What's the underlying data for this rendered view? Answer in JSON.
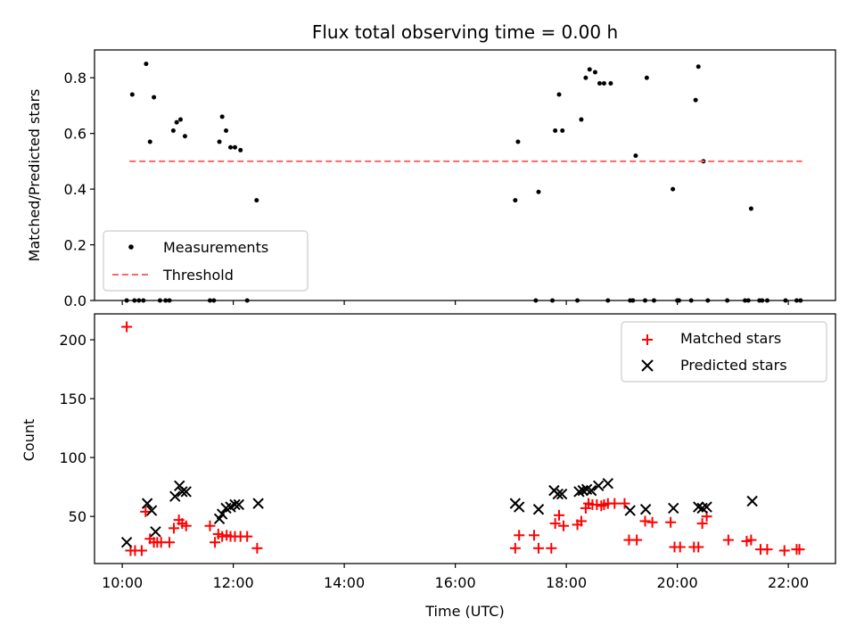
{
  "chart_data": [
    {
      "type": "scatter",
      "title": "Flux total observing time = 0.00 h",
      "xlabel": "",
      "ylabel": "Matched/Predicted stars",
      "xlim": [
        9.5,
        22.85
      ],
      "ylim": [
        0,
        0.9
      ],
      "yticks": [
        0.0,
        0.2,
        0.4,
        0.6,
        0.8
      ],
      "ytick_labels": [
        "0.0",
        "0.2",
        "0.4",
        "0.6",
        "0.8"
      ],
      "xticks": [
        10,
        12,
        14,
        16,
        18,
        20,
        22
      ],
      "xtick_labels": [
        "",
        "",
        "",
        "",
        "",
        "",
        ""
      ],
      "legend_position": "lower-left",
      "series": [
        {
          "name": "Measurements",
          "kind": "points",
          "color": "#000000",
          "x": [
            10.08,
            10.18,
            10.22,
            10.3,
            10.38,
            10.43,
            10.5,
            10.57,
            10.68,
            10.78,
            10.85,
            10.92,
            10.98,
            11.05,
            11.13,
            11.58,
            11.65,
            11.75,
            11.8,
            11.87,
            11.95,
            12.03,
            12.13,
            12.25,
            12.42,
            17.08,
            17.13,
            17.45,
            17.5,
            17.75,
            17.8,
            17.87,
            17.93,
            18.2,
            18.27,
            18.35,
            18.42,
            18.52,
            18.6,
            18.68,
            18.75,
            18.8,
            19.15,
            19.2,
            19.25,
            19.42,
            19.45,
            19.58,
            19.92,
            20.0,
            20.03,
            20.25,
            20.33,
            20.38,
            20.47,
            20.55,
            20.9,
            21.22,
            21.28,
            21.33,
            21.48,
            21.53,
            21.62,
            21.95,
            22.15,
            22.22
          ],
          "y": [
            0.0,
            0.74,
            0.0,
            0.0,
            0.0,
            0.85,
            0.57,
            0.73,
            0.0,
            0.0,
            0.0,
            0.61,
            0.64,
            0.65,
            0.59,
            0.0,
            0.0,
            0.57,
            0.66,
            0.61,
            0.55,
            0.55,
            0.54,
            0.0,
            0.36,
            0.36,
            0.57,
            0.0,
            0.39,
            0.0,
            0.61,
            0.74,
            0.61,
            0.0,
            0.65,
            0.8,
            0.83,
            0.82,
            0.78,
            0.78,
            0.0,
            0.78,
            0.0,
            0.0,
            0.52,
            0.0,
            0.8,
            0.0,
            0.4,
            0.0,
            0.0,
            0.0,
            0.72,
            0.84,
            0.5,
            0.0,
            0.0,
            0.0,
            0.0,
            0.33,
            0.0,
            0.0,
            0.0,
            0.0,
            0.0,
            0.0
          ]
        },
        {
          "name": "Threshold",
          "kind": "dashed-line",
          "color": "#ff6666",
          "x": [
            10.13,
            22.25
          ],
          "y": [
            0.5,
            0.5
          ]
        }
      ]
    },
    {
      "type": "scatter",
      "title": "",
      "xlabel": "Time (UTC)",
      "ylabel": "Count",
      "xlim": [
        9.5,
        22.85
      ],
      "ylim": [
        10,
        222
      ],
      "yticks": [
        50,
        100,
        150,
        200
      ],
      "ytick_labels": [
        "50",
        "100",
        "150",
        "200"
      ],
      "xticks": [
        10,
        12,
        14,
        16,
        18,
        20,
        22
      ],
      "xtick_labels": [
        "10:00",
        "12:00",
        "14:00",
        "16:00",
        "18:00",
        "20:00",
        "22:00"
      ],
      "legend_position": "upper-right",
      "series": [
        {
          "name": "Matched stars",
          "kind": "plus",
          "color": "#ff0000",
          "x": [
            10.08,
            10.15,
            10.23,
            10.35,
            10.42,
            10.5,
            10.57,
            10.63,
            10.7,
            10.85,
            10.93,
            11.02,
            11.08,
            11.15,
            11.58,
            11.67,
            11.73,
            11.8,
            11.88,
            11.95,
            12.03,
            12.13,
            12.25,
            12.43,
            17.08,
            17.15,
            17.42,
            17.5,
            17.73,
            17.8,
            17.87,
            17.95,
            18.2,
            18.27,
            18.35,
            18.4,
            18.47,
            18.55,
            18.63,
            18.68,
            18.75,
            18.87,
            19.05,
            19.13,
            19.27,
            19.42,
            19.55,
            19.88,
            19.95,
            20.05,
            20.3,
            20.38,
            20.45,
            20.53,
            20.92,
            21.25,
            21.33,
            21.5,
            21.62,
            21.93,
            22.15,
            22.2
          ],
          "y": [
            211,
            21,
            21,
            21,
            54,
            31,
            28,
            28,
            28,
            28,
            40,
            47,
            44,
            42,
            42,
            28,
            35,
            33,
            34,
            33,
            33,
            33,
            33,
            23,
            23,
            34,
            34,
            23,
            23,
            44,
            51,
            42,
            43,
            46,
            57,
            61,
            60,
            60,
            59,
            60,
            61,
            61,
            61,
            30,
            30,
            46,
            45,
            45,
            24,
            24,
            24,
            24,
            44,
            50,
            30,
            29,
            30,
            22,
            22,
            21,
            22,
            22
          ]
        },
        {
          "name": "Predicted stars",
          "kind": "x",
          "color": "#000000",
          "x": [
            10.08,
            10.45,
            10.53,
            10.6,
            10.95,
            11.03,
            11.08,
            11.15,
            11.75,
            11.8,
            11.87,
            11.95,
            12.03,
            12.1,
            12.45,
            17.08,
            17.15,
            17.5,
            17.78,
            17.85,
            17.92,
            18.23,
            18.3,
            18.37,
            18.45,
            18.58,
            18.75,
            19.15,
            19.43,
            19.93,
            20.38,
            20.45,
            20.53,
            21.35
          ],
          "y": [
            28,
            61,
            55,
            37,
            67,
            76,
            71,
            71,
            48,
            52,
            57,
            58,
            60,
            60,
            61,
            61,
            58,
            56,
            72,
            69,
            69,
            71,
            72,
            73,
            72,
            76,
            78,
            55,
            56,
            57,
            58,
            57,
            58,
            63
          ]
        }
      ]
    }
  ]
}
